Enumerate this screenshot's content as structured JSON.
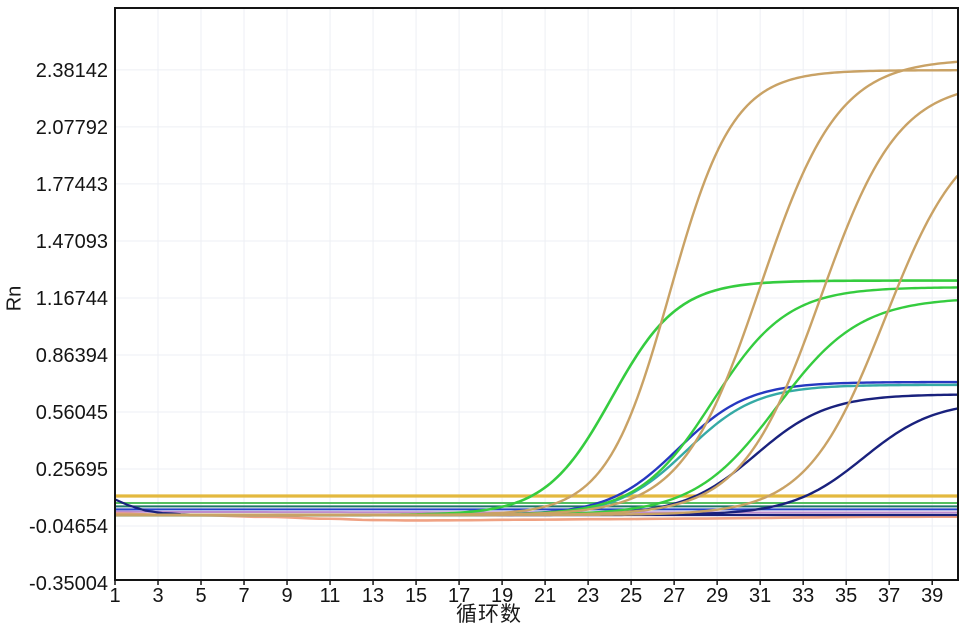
{
  "chart_data": {
    "type": "line",
    "title": "",
    "xlabel": "循环数",
    "ylabel": "Rn",
    "xlim": [
      1,
      40.2
    ],
    "ylim": [
      -0.334,
      2.711
    ],
    "x_ticks": [
      1,
      3,
      5,
      7,
      9,
      11,
      13,
      15,
      17,
      19,
      21,
      23,
      25,
      27,
      29,
      31,
      33,
      35,
      37,
      39
    ],
    "y_ticks": [
      2.38142,
      2.07792,
      1.77443,
      1.47093,
      1.16744,
      0.86394,
      0.56045,
      0.25695,
      -0.04654,
      -0.35004
    ],
    "y_tick_labels": [
      "2.38142",
      "2.07792",
      "1.77443",
      "1.47093",
      "1.16744",
      "0.86394",
      "0.56045",
      "0.25695",
      "-0.04654",
      "-0.35004"
    ],
    "grid": true,
    "legend": false,
    "background_color": "#ffffff",
    "grid_color": "#edeff4",
    "axis_color": "#141414",
    "threshold_value": 0.113,
    "threshold_color": "#E3B93F",
    "series": [
      {
        "name": "baseline-flat-green",
        "color": "#55C060",
        "width": 2,
        "type": "flat",
        "value": 0.076
      },
      {
        "name": "baseline-flat-teal",
        "color": "#1F7868",
        "width": 2,
        "type": "flat",
        "value": 0.058
      },
      {
        "name": "baseline-flat-blue",
        "color": "#2743C9",
        "width": 2,
        "type": "flat",
        "value": 0.042
      },
      {
        "name": "baseline-flat-pink",
        "color": "#BD8CCC",
        "width": 2,
        "type": "points",
        "points": [
          [
            1,
            0.03
          ],
          [
            4,
            0.028
          ],
          [
            20,
            0.026
          ],
          [
            40.2,
            0.025
          ]
        ]
      },
      {
        "name": "baseline-salmon-dip",
        "color": "#EFA183",
        "width": 2.6,
        "type": "points",
        "points": [
          [
            1,
            0.02
          ],
          [
            3,
            0.014
          ],
          [
            5,
            0.01
          ],
          [
            8,
            0.002
          ],
          [
            11,
            -0.008
          ],
          [
            13,
            -0.015
          ],
          [
            15,
            -0.017
          ],
          [
            17,
            -0.016
          ],
          [
            20,
            -0.013
          ],
          [
            24,
            -0.01
          ],
          [
            28,
            -0.007
          ],
          [
            31,
            -0.004
          ],
          [
            33,
            -0.001
          ],
          [
            36,
            0.002
          ],
          [
            40.2,
            0.003
          ]
        ]
      },
      {
        "name": "baseline-navy-dip",
        "color": "#19217D",
        "width": 2.2,
        "type": "points",
        "points": [
          [
            1,
            0.095
          ],
          [
            1.6,
            0.065
          ],
          [
            2.4,
            0.036
          ],
          [
            3.2,
            0.022
          ],
          [
            4.5,
            0.014
          ],
          [
            6,
            0.012
          ],
          [
            40.2,
            0.012
          ]
        ]
      },
      {
        "name": "threshold-line",
        "color": "#E3B93F",
        "width": 3.2,
        "type": "flat",
        "value": 0.113
      },
      {
        "name": "amplification-curve-teal-1",
        "color": "#35AAA5",
        "width": 2.4,
        "type": "sigmoid",
        "baseline": 0.01,
        "plateau": 0.705,
        "midpoint": 27.6,
        "slope": 0.62
      },
      {
        "name": "amplification-curve-blue-1",
        "color": "#2638C0",
        "width": 2.4,
        "type": "sigmoid",
        "baseline": 0.012,
        "plateau": 0.72,
        "midpoint": 27.2,
        "slope": 0.62
      },
      {
        "name": "amplification-curve-navy-2",
        "color": "#19217D",
        "width": 2.4,
        "type": "sigmoid",
        "baseline": 0.012,
        "plateau": 0.655,
        "midpoint": 30.8,
        "slope": 0.6
      },
      {
        "name": "amplification-curve-navy-3",
        "color": "#19217D",
        "width": 2.4,
        "type": "sigmoid",
        "baseline": 0.012,
        "plateau": 0.62,
        "midpoint": 35.8,
        "slope": 0.6
      },
      {
        "name": "amplification-curve-green-1",
        "color": "#35CC3F",
        "width": 2.6,
        "type": "sigmoid",
        "baseline": 0.012,
        "plateau": 1.26,
        "midpoint": 24.1,
        "slope": 0.65
      },
      {
        "name": "amplification-curve-green-2",
        "color": "#35CC3F",
        "width": 2.4,
        "type": "sigmoid",
        "baseline": 0.012,
        "plateau": 1.225,
        "midpoint": 28.8,
        "slope": 0.58
      },
      {
        "name": "amplification-curve-green-3",
        "color": "#35CC3F",
        "width": 2.4,
        "type": "sigmoid",
        "baseline": 0.012,
        "plateau": 1.17,
        "midpoint": 31.8,
        "slope": 0.52
      },
      {
        "name": "amplification-curve-orange-1",
        "color": "#C9A265",
        "width": 2.4,
        "type": "sigmoid",
        "baseline": 0.012,
        "plateau": 2.38,
        "midpoint": 26.8,
        "slope": 0.68
      },
      {
        "name": "amplification-curve-orange-2",
        "color": "#C9A265",
        "width": 2.4,
        "type": "sigmoid",
        "baseline": 0.012,
        "plateau": 2.44,
        "midpoint": 31.0,
        "slope": 0.55
      },
      {
        "name": "amplification-curve-orange-3",
        "color": "#C9A265",
        "width": 2.4,
        "type": "sigmoid",
        "baseline": 0.012,
        "plateau": 2.32,
        "midpoint": 33.8,
        "slope": 0.55
      },
      {
        "name": "amplification-curve-orange-4",
        "color": "#C9A265",
        "width": 2.4,
        "type": "sigmoid",
        "baseline": 0.012,
        "plateau": 2.1,
        "midpoint": 36.8,
        "slope": 0.55
      }
    ]
  }
}
